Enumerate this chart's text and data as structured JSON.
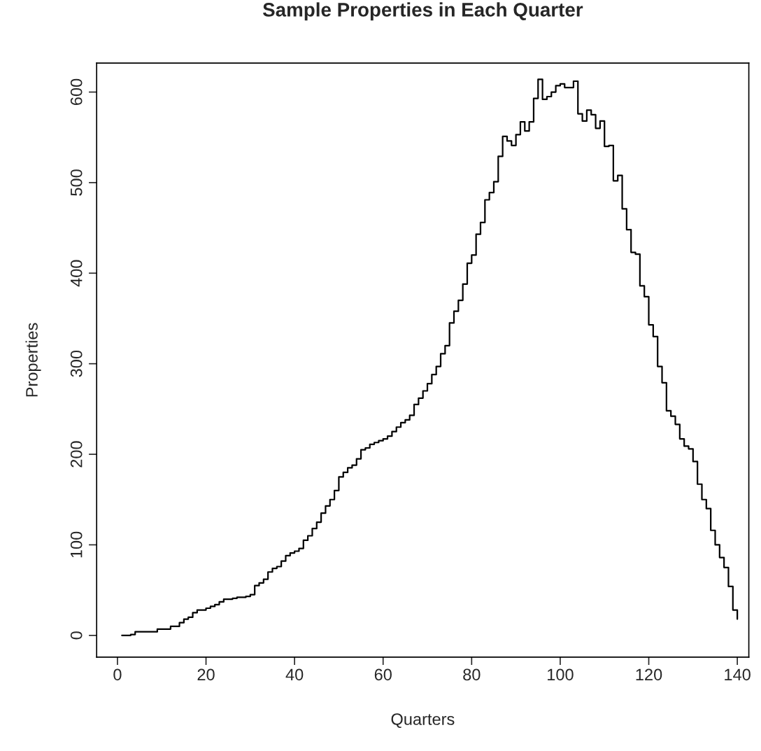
{
  "chart_data": {
    "type": "step",
    "title": "Sample Properties in Each Quarter",
    "xlabel": "Quarters",
    "ylabel": "Properties",
    "x": [
      1,
      2,
      3,
      4,
      5,
      6,
      7,
      8,
      9,
      10,
      11,
      12,
      13,
      14,
      15,
      16,
      17,
      18,
      19,
      20,
      21,
      22,
      23,
      24,
      25,
      26,
      27,
      28,
      29,
      30,
      31,
      32,
      33,
      34,
      35,
      36,
      37,
      38,
      39,
      40,
      41,
      42,
      43,
      44,
      45,
      46,
      47,
      48,
      49,
      50,
      51,
      52,
      53,
      54,
      55,
      56,
      57,
      58,
      59,
      60,
      61,
      62,
      63,
      64,
      65,
      66,
      67,
      68,
      69,
      70,
      71,
      72,
      73,
      74,
      75,
      76,
      77,
      78,
      79,
      80,
      81,
      82,
      83,
      84,
      85,
      86,
      87,
      88,
      89,
      90,
      91,
      92,
      93,
      94,
      95,
      96,
      97,
      98,
      99,
      100,
      101,
      102,
      103,
      104,
      105,
      106,
      107,
      108,
      109,
      110,
      111,
      112,
      113,
      114,
      115,
      116,
      117,
      118,
      119,
      120,
      121,
      122,
      123,
      124,
      125,
      126,
      127,
      128,
      129,
      130,
      131,
      132,
      133,
      134,
      135,
      136,
      137,
      138,
      139,
      140
    ],
    "series": [
      {
        "color": "#000000",
        "values": [
          0,
          0,
          1,
          4,
          4,
          4,
          4,
          4,
          7,
          7,
          7,
          10,
          10,
          14,
          18,
          20,
          25,
          28,
          28,
          30,
          32,
          34,
          37,
          40,
          40,
          41,
          42,
          42,
          43,
          45,
          55,
          58,
          62,
          70,
          74,
          76,
          82,
          88,
          91,
          93,
          96,
          105,
          110,
          118,
          125,
          135,
          143,
          150,
          160,
          175,
          180,
          185,
          188,
          195,
          205,
          207,
          211,
          213,
          215,
          217,
          220,
          225,
          230,
          235,
          238,
          243,
          255,
          262,
          270,
          278,
          288,
          297,
          311,
          320,
          345,
          358,
          370,
          388,
          411,
          420,
          443,
          456,
          481,
          489,
          501,
          529,
          551,
          546,
          541,
          553,
          567,
          557,
          567,
          593,
          614,
          592,
          595,
          600,
          607,
          609,
          605,
          605,
          612,
          576,
          568,
          580,
          575,
          560,
          568,
          540,
          541,
          502,
          508,
          471,
          448,
          423,
          421,
          386,
          374,
          343,
          330,
          297,
          279,
          248,
          242,
          233,
          217,
          209,
          206,
          192,
          167,
          150,
          140,
          116,
          100,
          86,
          75,
          54,
          28,
          18
        ]
      }
    ],
    "xlim": [
      -4.7,
      142.6
    ],
    "ylim": [
      -24,
      632
    ],
    "xticks": [
      0,
      20,
      40,
      60,
      80,
      100,
      120,
      140
    ],
    "yticks": [
      0,
      100,
      200,
      300,
      400,
      500,
      600
    ],
    "grid": false,
    "legend": false
  }
}
